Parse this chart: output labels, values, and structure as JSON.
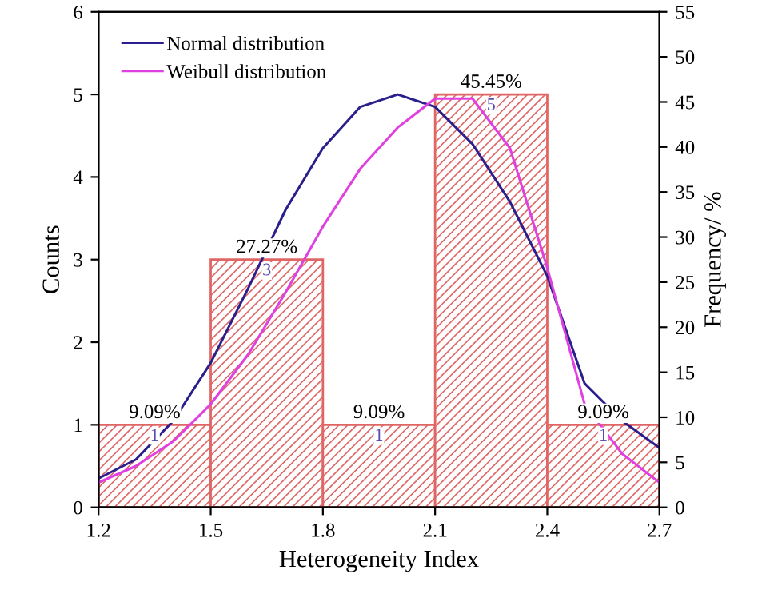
{
  "chart_data": {
    "type": "histogram",
    "xlabel": "Heterogeneity Index",
    "ylabel": "Counts",
    "y2label": "Frequency/ %",
    "bins": [
      1.2,
      1.5,
      1.8,
      2.1,
      2.4,
      2.7
    ],
    "values": [
      1,
      3,
      1,
      5,
      1
    ],
    "color": "#e06666",
    "value_labels": [
      "1",
      "3",
      "1",
      "5",
      "1"
    ],
    "series": [
      {
        "name": "Normal distribution",
        "type": "line",
        "color": "#2b1f8c",
        "x": [
          1.2,
          1.3,
          1.4,
          1.5,
          1.6,
          1.7,
          1.8,
          1.9,
          2.0,
          2.1,
          2.2,
          2.3,
          2.4,
          2.5,
          2.6,
          2.7
        ],
        "values": [
          0.35,
          0.58,
          1.05,
          1.75,
          2.65,
          3.6,
          4.35,
          4.85,
          5.0,
          4.85,
          4.4,
          3.7,
          2.8,
          1.5,
          1.05,
          0.72
        ]
      },
      {
        "name": "Weibull distribution",
        "type": "line",
        "color": "#e040e0",
        "x": [
          1.2,
          1.3,
          1.4,
          1.5,
          1.6,
          1.7,
          1.8,
          1.9,
          2.0,
          2.1,
          2.2,
          2.3,
          2.4,
          2.5,
          2.6,
          2.7
        ],
        "values": [
          0.3,
          0.5,
          0.8,
          1.25,
          1.85,
          2.6,
          3.4,
          4.1,
          4.6,
          4.95,
          4.95,
          4.35,
          2.9,
          1.25,
          0.65,
          0.3
        ]
      }
    ],
    "annotations": [
      {
        "text": "9.09%",
        "x": 1.35,
        "y": 1
      },
      {
        "text": "27.27%",
        "x": 1.65,
        "y": 3
      },
      {
        "text": "9.09%",
        "x": 1.95,
        "y": 1
      },
      {
        "text": "45.45%",
        "x": 2.25,
        "y": 5
      },
      {
        "text": "9.09%",
        "x": 2.55,
        "y": 1
      }
    ],
    "xlim": [
      1.2,
      2.7
    ],
    "xticks": [
      1.2,
      1.5,
      1.8,
      2.1,
      2.4,
      2.7
    ],
    "ylim": [
      0,
      6
    ],
    "yticks": [
      0,
      1,
      2,
      3,
      4,
      5,
      6
    ],
    "y2lim": [
      0,
      55
    ],
    "y2ticks": [
      0,
      5,
      10,
      15,
      20,
      25,
      30,
      35,
      40,
      45,
      50,
      55
    ],
    "legend": "top left",
    "grid": false
  }
}
